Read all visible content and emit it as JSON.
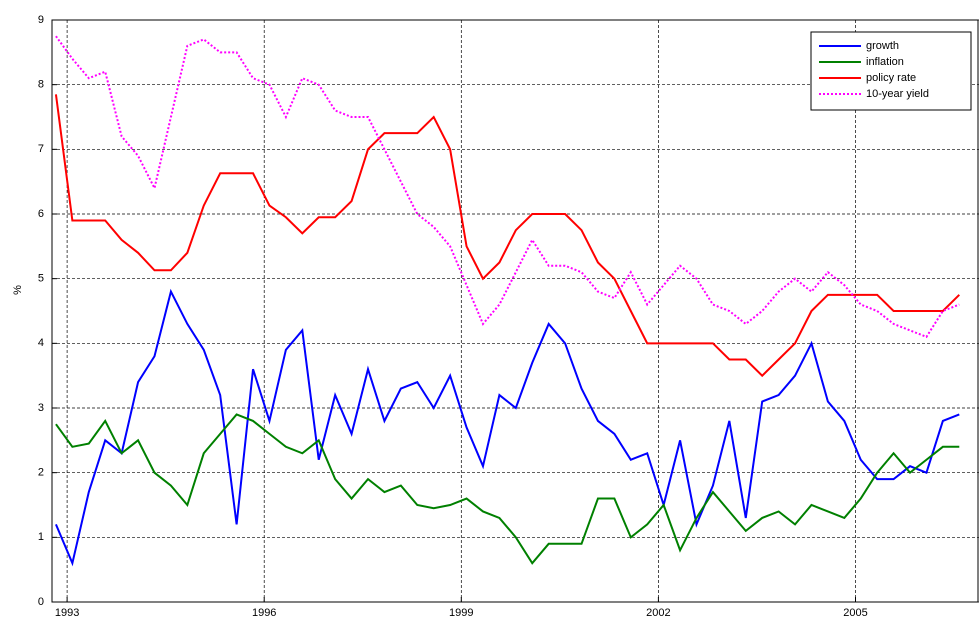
{
  "chart_data": {
    "type": "line",
    "ylabel": "%",
    "x": [
      1992.83,
      1993.08,
      1993.33,
      1993.58,
      1993.83,
      1994.08,
      1994.33,
      1994.58,
      1994.83,
      1995.08,
      1995.33,
      1995.58,
      1995.83,
      1996.08,
      1996.33,
      1996.58,
      1996.83,
      1997.08,
      1997.33,
      1997.58,
      1997.83,
      1998.08,
      1998.33,
      1998.58,
      1998.83,
      1999.08,
      1999.33,
      1999.58,
      1999.83,
      2000.08,
      2000.33,
      2000.58,
      2000.83,
      2001.08,
      2001.33,
      2001.58,
      2001.83,
      2002.08,
      2002.33,
      2002.58,
      2002.83,
      2003.08,
      2003.33,
      2003.58,
      2003.83,
      2004.08,
      2004.33,
      2004.58,
      2004.83,
      2005.08,
      2005.33,
      2005.58,
      2005.83,
      2006.08,
      2006.33,
      2006.58
    ],
    "series": [
      {
        "name": "growth",
        "color": "#0000ff",
        "style": "solid",
        "values": [
          1.2,
          0.6,
          1.7,
          2.5,
          2.3,
          3.4,
          3.8,
          4.8,
          4.3,
          3.9,
          3.2,
          1.2,
          3.6,
          2.8,
          3.9,
          4.2,
          2.2,
          3.2,
          2.6,
          3.6,
          2.8,
          3.3,
          3.4,
          3.0,
          3.5,
          2.7,
          2.1,
          3.2,
          3.0,
          3.7,
          4.3,
          4.0,
          3.3,
          2.8,
          2.6,
          2.2,
          2.3,
          1.5,
          2.5,
          1.2,
          1.8,
          2.8,
          1.3,
          3.1,
          3.2,
          3.5,
          4.0,
          3.1,
          2.8,
          2.2,
          1.9,
          1.9,
          2.1,
          2.0,
          2.8,
          2.9
        ]
      },
      {
        "name": "inflation",
        "color": "#008000",
        "style": "solid",
        "values": [
          2.75,
          2.4,
          2.45,
          2.8,
          2.3,
          2.5,
          2.0,
          1.8,
          1.5,
          2.3,
          2.6,
          2.9,
          2.8,
          2.6,
          2.4,
          2.3,
          2.5,
          1.9,
          1.6,
          1.9,
          1.7,
          1.8,
          1.5,
          1.45,
          1.5,
          1.6,
          1.4,
          1.3,
          1.0,
          0.6,
          0.9,
          0.9,
          0.9,
          1.6,
          1.6,
          1.0,
          1.2,
          1.5,
          0.8,
          1.3,
          1.7,
          1.4,
          1.1,
          1.3,
          1.4,
          1.2,
          1.5,
          1.4,
          1.3,
          1.6,
          2.0,
          2.3,
          2.0,
          2.2,
          2.4,
          2.4
        ]
      },
      {
        "name": "policy rate",
        "color": "#ff0000",
        "style": "solid",
        "values": [
          7.85,
          5.9,
          5.9,
          5.9,
          5.6,
          5.4,
          5.13,
          5.13,
          5.4,
          6.13,
          6.63,
          6.63,
          6.63,
          6.13,
          5.95,
          5.7,
          5.95,
          5.95,
          6.2,
          7.0,
          7.25,
          7.25,
          7.25,
          7.5,
          7.0,
          5.5,
          5.0,
          5.25,
          5.75,
          6.0,
          6.0,
          6.0,
          5.75,
          5.25,
          5.0,
          4.5,
          4.0,
          4.0,
          4.0,
          4.0,
          4.0,
          3.75,
          3.75,
          3.5,
          3.75,
          4.0,
          4.5,
          4.75,
          4.75,
          4.75,
          4.75,
          4.5,
          4.5,
          4.5,
          4.5,
          4.75
        ]
      },
      {
        "name": "10-year yield",
        "color": "#ff00ff",
        "style": "dotted",
        "values": [
          8.75,
          8.4,
          8.1,
          8.2,
          7.2,
          6.9,
          6.4,
          7.5,
          8.6,
          8.7,
          8.5,
          8.5,
          8.1,
          8.0,
          7.5,
          8.1,
          8.0,
          7.6,
          7.5,
          7.5,
          7.0,
          6.5,
          6.0,
          5.8,
          5.5,
          4.9,
          4.3,
          4.6,
          5.1,
          5.6,
          5.2,
          5.2,
          5.1,
          4.8,
          4.7,
          5.1,
          4.6,
          4.9,
          5.2,
          5.0,
          4.6,
          4.5,
          4.3,
          4.5,
          4.8,
          5.0,
          4.8,
          5.1,
          4.9,
          4.6,
          4.5,
          4.3,
          4.2,
          4.1,
          4.5,
          4.6
        ]
      }
    ],
    "xlim": [
      1992.77,
      2006.88
    ],
    "xticks": [
      1993,
      1996,
      1999,
      2002,
      2005
    ],
    "ylim": [
      0,
      9
    ],
    "yticks": [
      0,
      1,
      2,
      3,
      4,
      5,
      6,
      7,
      8,
      9
    ],
    "grid": true,
    "legend": "upper right"
  }
}
